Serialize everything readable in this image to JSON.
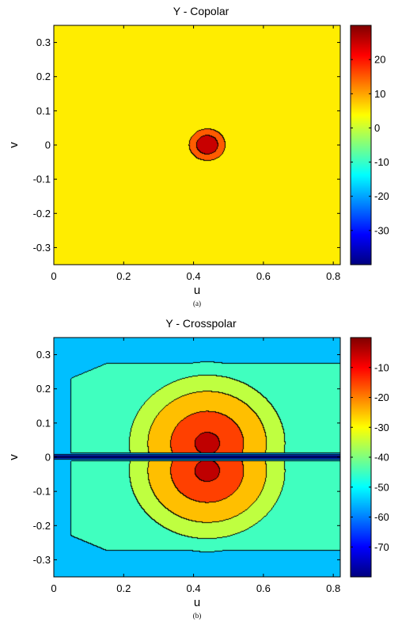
{
  "chart_data": [
    {
      "type": "heatmap",
      "title": "Y - Copolar",
      "xlabel": "u",
      "ylabel": "v",
      "xlim": [
        0,
        0.82
      ],
      "ylim": [
        -0.35,
        0.35
      ],
      "x_ticks": [
        "0",
        "0.2",
        "0.4",
        "0.6",
        "0.8"
      ],
      "y_ticks": [
        "0.3",
        "0.2",
        "0.1",
        "0",
        "-0.1",
        "-0.2",
        "-0.3"
      ],
      "colorbar": {
        "range": [
          -40,
          30
        ],
        "ticks": [
          "20",
          "10",
          "0",
          "-10",
          "-20",
          "-30"
        ]
      },
      "peak": {
        "u": 0.44,
        "v": 0.0,
        "value": 29
      },
      "contour_levels": [
        -30,
        -20,
        -10,
        0,
        10,
        20
      ],
      "caption": "(a)"
    },
    {
      "type": "heatmap",
      "title": "Y - Crosspolar",
      "xlabel": "u",
      "ylabel": "v",
      "xlim": [
        0,
        0.82
      ],
      "ylim": [
        -0.35,
        0.35
      ],
      "x_ticks": [
        "0",
        "0.2",
        "0.4",
        "0.6",
        "0.8"
      ],
      "y_ticks": [
        "0.3",
        "0.2",
        "0.1",
        "0",
        "-0.1",
        "-0.2",
        "-0.3"
      ],
      "colorbar": {
        "range": [
          -80,
          0
        ],
        "ticks": [
          "-10",
          "-20",
          "-30",
          "-40",
          "-50",
          "-60",
          "-70"
        ]
      },
      "peaks": [
        {
          "u": 0.44,
          "v": 0.04,
          "value": -2
        },
        {
          "u": 0.44,
          "v": -0.04,
          "value": -2
        }
      ],
      "null_line_v": 0,
      "contour_levels": [
        -70,
        -60,
        -50,
        -40,
        -30,
        -20,
        -10
      ],
      "caption": "(b)"
    }
  ],
  "colors": {
    "colormap": "jet",
    "contour_line": "#000000",
    "background": "#ffffff"
  }
}
